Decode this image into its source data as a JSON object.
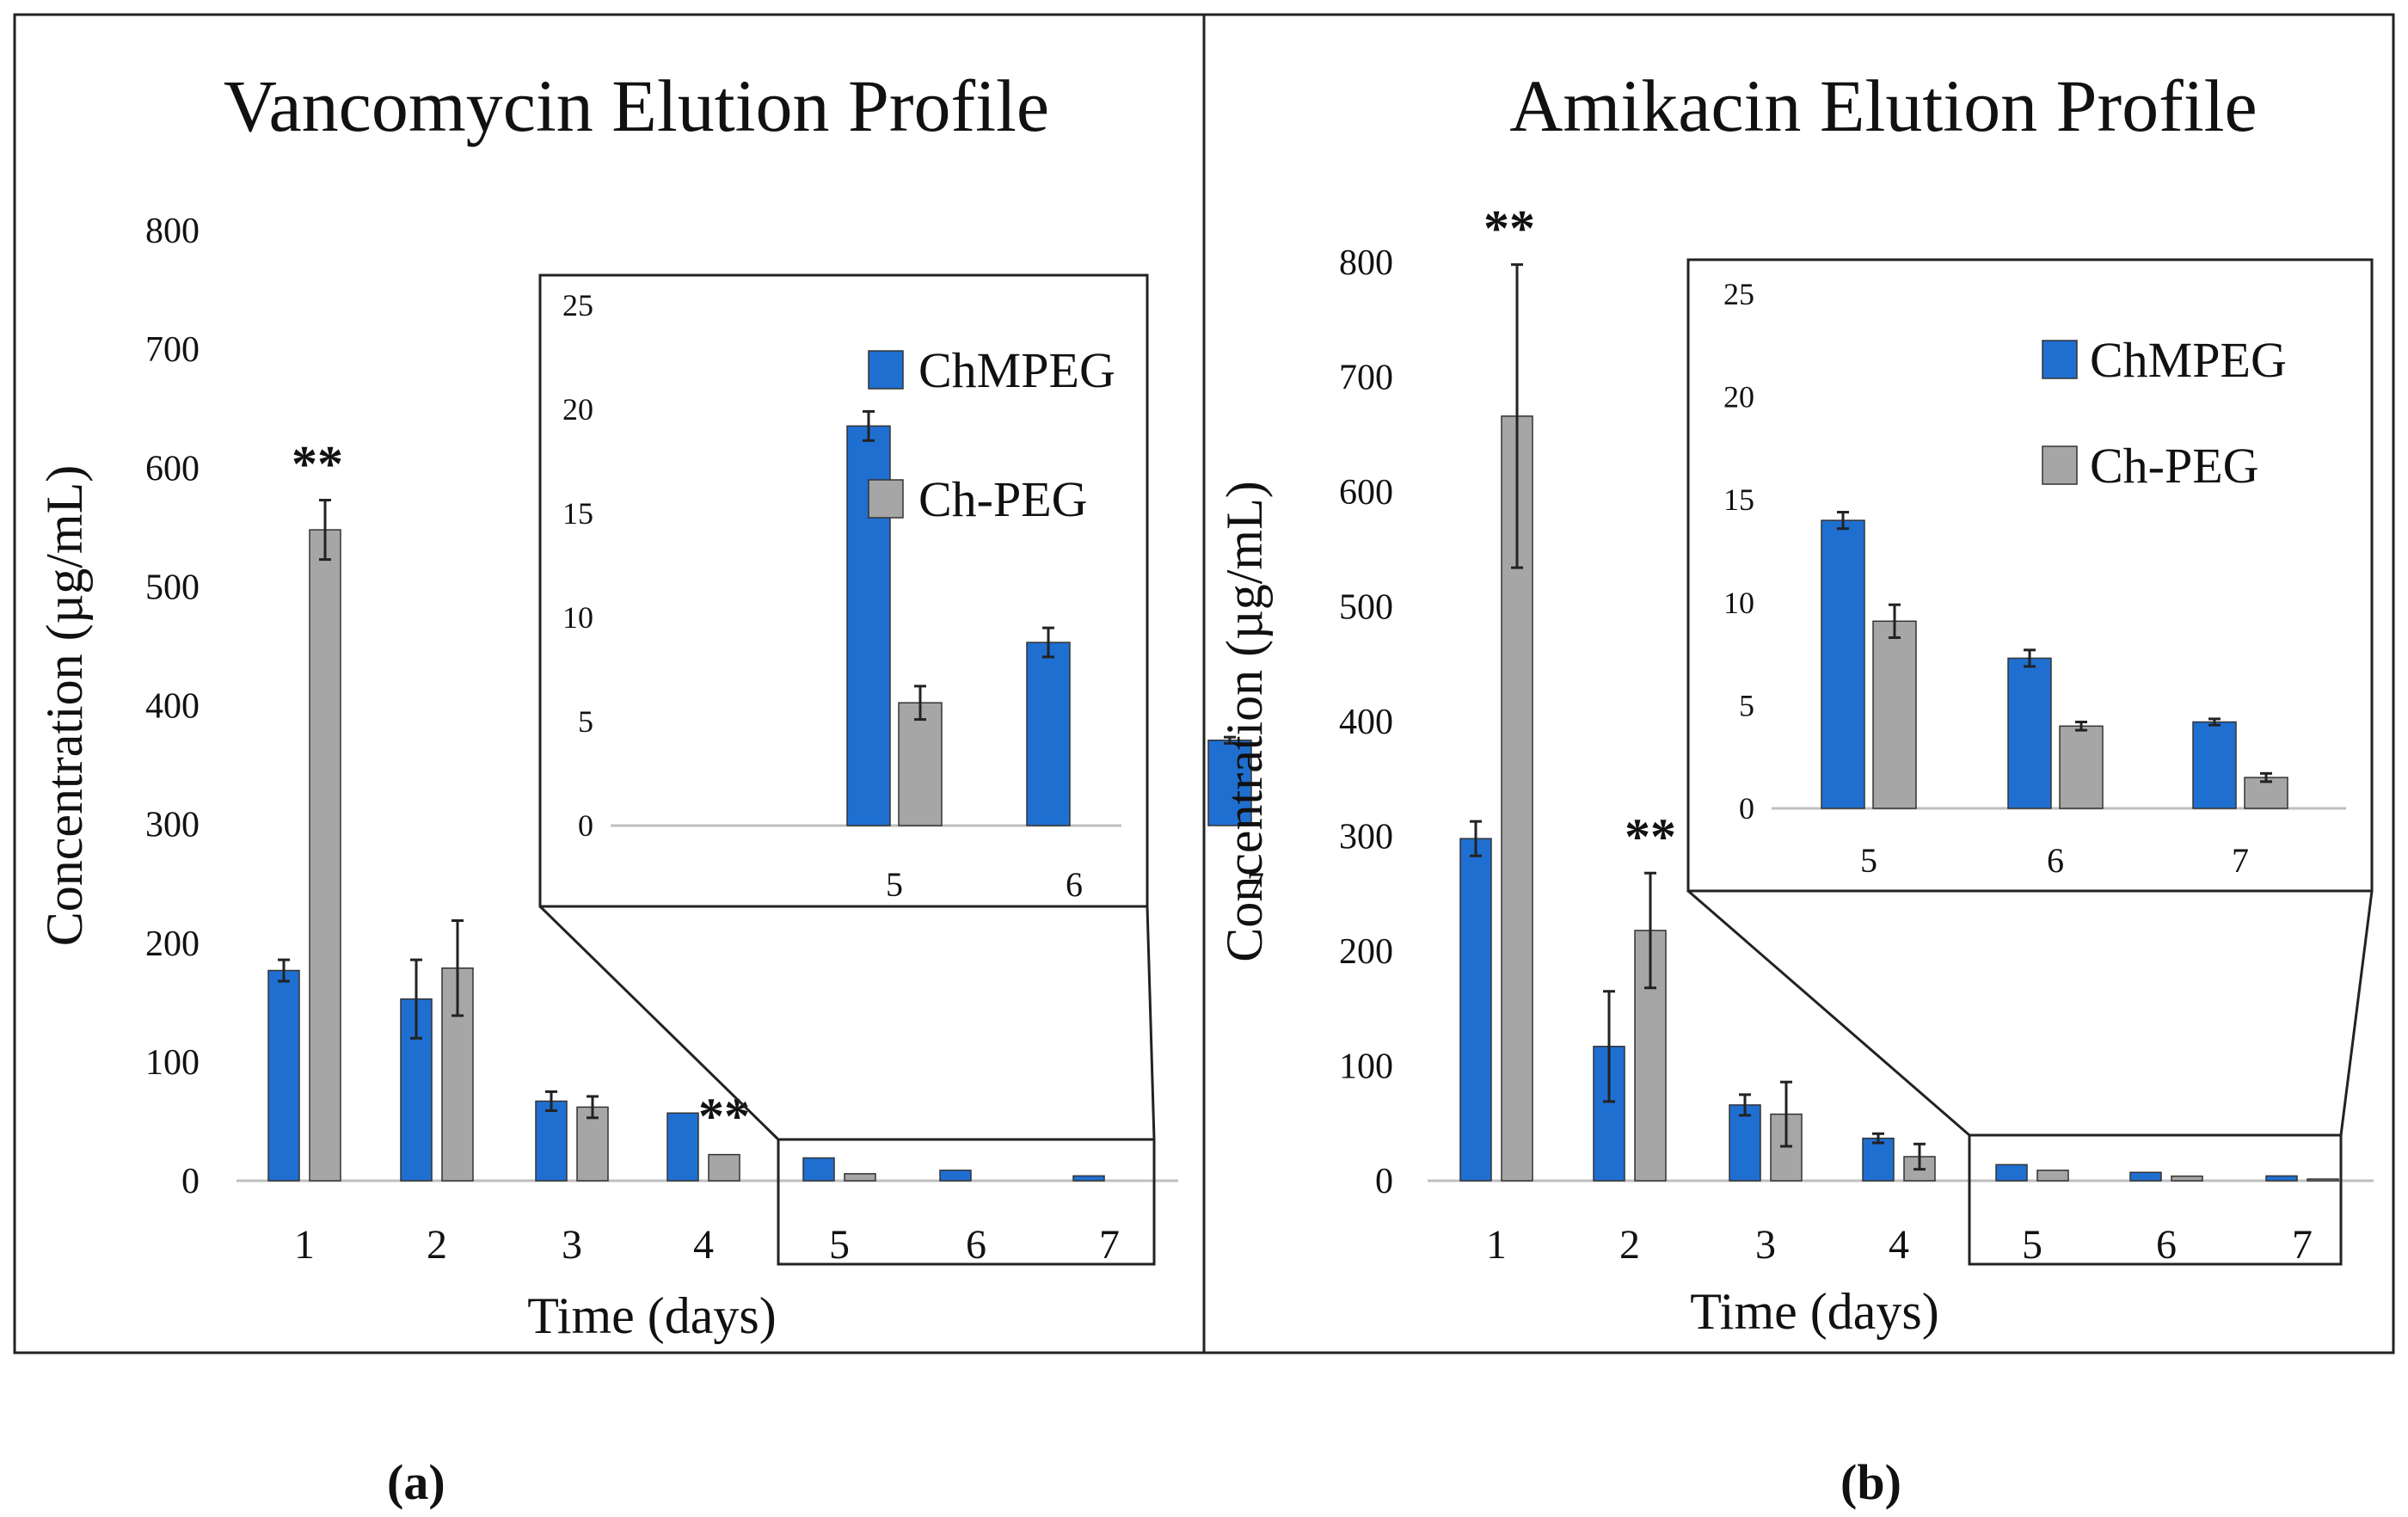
{
  "colors": {
    "chmpeg": "#1f6fd1",
    "chpeg": "#a6a6a6",
    "axis": "#bfbfbf",
    "text": "#111111"
  },
  "captions": [
    "(a)",
    "(b)"
  ],
  "chart_data": [
    {
      "type": "bar",
      "title": "Vancomycin Elution Profile",
      "xlabel": "Time (days)",
      "ylabel": "Concentration (µg/mL)",
      "categories": [
        "1",
        "2",
        "3",
        "4",
        "5",
        "6",
        "7"
      ],
      "ylim": [
        0,
        800
      ],
      "yticks": [
        0,
        100,
        200,
        300,
        400,
        500,
        600,
        700,
        800
      ],
      "series": [
        {
          "name": "ChMPEG",
          "values": [
            177,
            153,
            67,
            57,
            19.2,
            8.8,
            4.1
          ],
          "errors": [
            9,
            33,
            8,
            2,
            0.7,
            0.7,
            0.15
          ]
        },
        {
          "name": "Ch-PEG",
          "values": [
            548,
            179,
            62,
            22,
            5.9,
            0,
            0
          ],
          "errors": [
            25,
            40,
            9,
            2,
            0.8,
            0,
            0
          ]
        }
      ],
      "significance": [
        {
          "category": "1",
          "label": "**"
        },
        {
          "category": "4",
          "label": "**"
        }
      ],
      "inset": {
        "categories": [
          "5",
          "6",
          "7"
        ],
        "ylim": [
          0,
          25
        ],
        "yticks": [
          0,
          5,
          10,
          15,
          20,
          25
        ],
        "series": [
          {
            "name": "ChMPEG",
            "values": [
              19.2,
              8.8,
              4.1
            ],
            "errors": [
              0.7,
              0.7,
              0.15
            ]
          },
          {
            "name": "Ch-PEG",
            "values": [
              5.9,
              0,
              0
            ],
            "errors": [
              0.8,
              0,
              0
            ]
          }
        ]
      },
      "legend": "inside inset, top-right"
    },
    {
      "type": "bar",
      "title": "Amikacin Elution Profile",
      "xlabel": "Time (days)",
      "ylabel": "Concentration (µg/mL)",
      "categories": [
        "1",
        "2",
        "3",
        "4",
        "5",
        "6",
        "7"
      ],
      "ylim": [
        0,
        800
      ],
      "yticks": [
        0,
        100,
        200,
        300,
        400,
        500,
        600,
        700,
        800
      ],
      "series": [
        {
          "name": "ChMPEG",
          "values": [
            298,
            117,
            66,
            37,
            14,
            7.3,
            4.2
          ],
          "errors": [
            15,
            48,
            9,
            4,
            0.4,
            0.4,
            0.15
          ]
        },
        {
          "name": "Ch-PEG",
          "values": [
            666,
            218,
            58,
            21,
            9.1,
            4,
            1.5
          ],
          "errors": [
            132,
            50,
            28,
            11,
            0.8,
            0.2,
            0.2
          ]
        }
      ],
      "significance": [
        {
          "category": "1",
          "label": "**"
        },
        {
          "category": "2",
          "label": "**"
        }
      ],
      "inset": {
        "categories": [
          "5",
          "6",
          "7"
        ],
        "ylim": [
          0,
          25
        ],
        "yticks": [
          0,
          5,
          10,
          15,
          20,
          25
        ],
        "series": [
          {
            "name": "ChMPEG",
            "values": [
              14,
              7.3,
              4.2
            ],
            "errors": [
              0.4,
              0.4,
              0.15
            ]
          },
          {
            "name": "Ch-PEG",
            "values": [
              9.1,
              4,
              1.5
            ],
            "errors": [
              0.8,
              0.2,
              0.2
            ]
          }
        ]
      },
      "legend": "inside inset, top-right"
    }
  ]
}
